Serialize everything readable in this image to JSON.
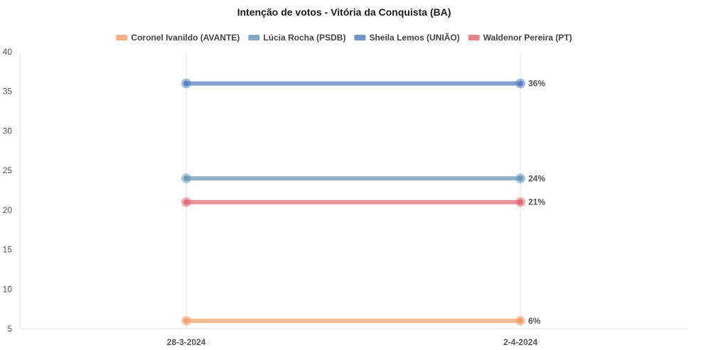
{
  "chart_data": {
    "type": "line",
    "title": "Intenção de votos - Vitória da Conquista (BA)",
    "xlabel": "",
    "ylabel": "",
    "categories": [
      "28-3-2024",
      "2-4-2024"
    ],
    "ylim": [
      5,
      40
    ],
    "yticks": [
      5,
      10,
      15,
      20,
      25,
      30,
      35,
      40
    ],
    "grid": "vertical",
    "legend_position": "top",
    "series": [
      {
        "name": "Coronel Ivanildo (AVANTE)",
        "color": "#F5A26B",
        "values": [
          6,
          6
        ],
        "end_label": "6%"
      },
      {
        "name": "Lúcia Rocha (PSDB)",
        "color": "#6E9AB8",
        "values": [
          24,
          24
        ],
        "end_label": "24%"
      },
      {
        "name": "Sheila Lemos (UNIÃO)",
        "color": "#5B82C0",
        "values": [
          36,
          36
        ],
        "end_label": "36%"
      },
      {
        "name": "Waldenor Pereira (PT)",
        "color": "#E07078",
        "values": [
          21,
          21
        ],
        "end_label": "21%"
      }
    ]
  }
}
